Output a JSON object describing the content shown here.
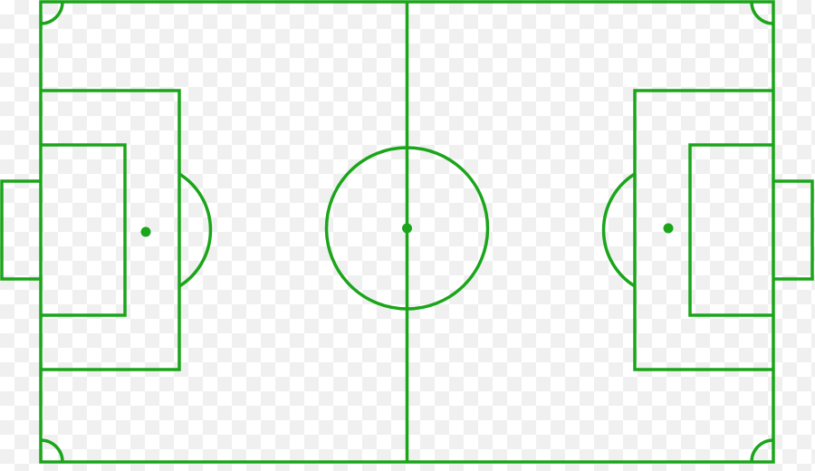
{
  "pitch": {
    "line_color": "#1aa51a",
    "background": "transparent-checkerboard"
  }
}
